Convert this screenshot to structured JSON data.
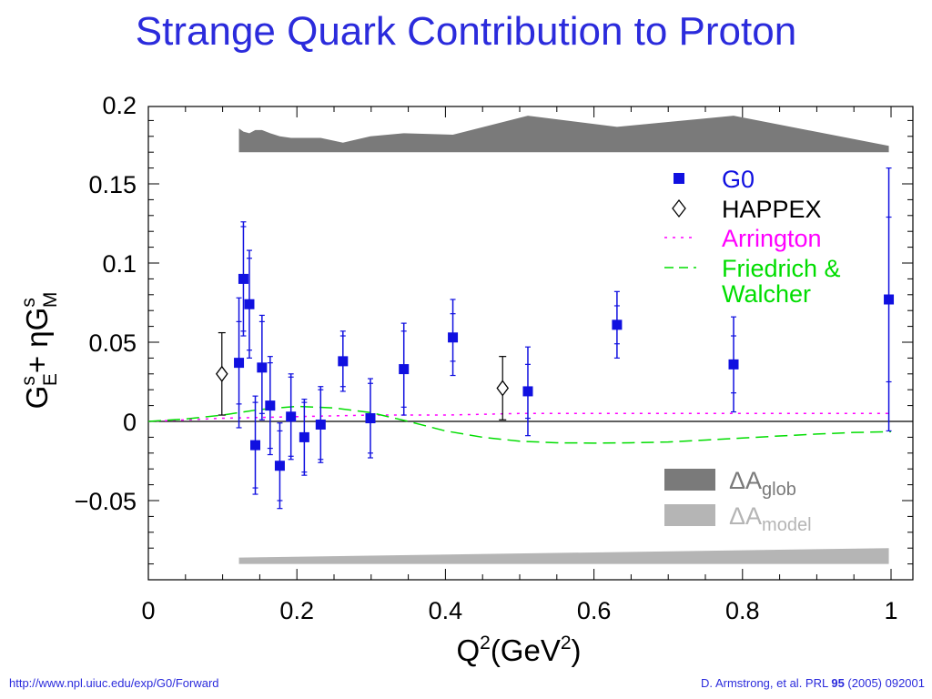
{
  "title": "Strange Quark Contribution to Proton",
  "footer": {
    "url": "http://www.npl.uiuc.edu/exp/G0/Forward",
    "citation_prefix": "D. Armstrong, et al. PRL ",
    "citation_volume": "95",
    "citation_suffix": " (2005) 092001"
  },
  "colors": {
    "title": "#2b2bdc",
    "g0": "#1010e0",
    "happex": "#000000",
    "arrington": "#ff00ff",
    "friedrich_walcher": "#00dd00",
    "band_glob": "#7a7a7a",
    "band_model": "#b5b5b5"
  },
  "chart_data": {
    "type": "scatter",
    "title": "",
    "xlabel": "Q²(GeV²)",
    "ylabel": "G_E^s + ηG_M^s",
    "xlim": [
      0,
      1
    ],
    "ylim": [
      -0.1,
      0.2
    ],
    "xticks": [
      0,
      0.2,
      0.4,
      0.6,
      0.8,
      1
    ],
    "xtick_labels": [
      "0",
      "0.2",
      "0.4",
      "0.6",
      "0.8",
      "1"
    ],
    "yticks": [
      -0.05,
      0,
      0.05,
      0.1,
      0.15,
      0.2
    ],
    "ytick_labels": [
      "−0.05",
      "0",
      "0.05",
      "0.1",
      "0.15",
      "0.2"
    ],
    "legend": [
      {
        "label": "G0",
        "marker": "square",
        "color": "#1010e0"
      },
      {
        "label": "HAPPEX",
        "marker": "diamond",
        "color": "#000000"
      },
      {
        "label": "Arrington",
        "marker": "dotted-line",
        "color": "#ff00ff"
      },
      {
        "label": "Friedrich &",
        "label2": "Walcher",
        "marker": "dashed-line",
        "color": "#00dd00"
      }
    ],
    "band_legend": [
      {
        "base": "ΔA",
        "sub": "glob",
        "color": "#7a7a7a"
      },
      {
        "base": "ΔA",
        "sub": "model",
        "color": "#b5b5b5"
      }
    ],
    "series": [
      {
        "name": "G0",
        "points": [
          {
            "x": 0.122,
            "y": 0.037,
            "stat": 0.026,
            "tot": 0.041
          },
          {
            "x": 0.128,
            "y": 0.09,
            "stat": 0.033,
            "tot": 0.036
          },
          {
            "x": 0.136,
            "y": 0.074,
            "stat": 0.029,
            "tot": 0.034
          },
          {
            "x": 0.144,
            "y": -0.015,
            "stat": 0.027,
            "tot": 0.031
          },
          {
            "x": 0.153,
            "y": 0.034,
            "stat": 0.029,
            "tot": 0.033
          },
          {
            "x": 0.164,
            "y": 0.01,
            "stat": 0.027,
            "tot": 0.031
          },
          {
            "x": 0.177,
            "y": -0.028,
            "stat": 0.022,
            "tot": 0.027
          },
          {
            "x": 0.192,
            "y": 0.003,
            "stat": 0.025,
            "tot": 0.027
          },
          {
            "x": 0.21,
            "y": -0.01,
            "stat": 0.022,
            "tot": 0.024
          },
          {
            "x": 0.232,
            "y": -0.002,
            "stat": 0.022,
            "tot": 0.024
          },
          {
            "x": 0.262,
            "y": 0.038,
            "stat": 0.016,
            "tot": 0.019
          },
          {
            "x": 0.299,
            "y": 0.002,
            "stat": 0.022,
            "tot": 0.025
          },
          {
            "x": 0.344,
            "y": 0.033,
            "stat": 0.024,
            "tot": 0.029
          },
          {
            "x": 0.41,
            "y": 0.053,
            "stat": 0.015,
            "tot": 0.024
          },
          {
            "x": 0.511,
            "y": 0.019,
            "stat": 0.017,
            "tot": 0.028
          },
          {
            "x": 0.631,
            "y": 0.061,
            "stat": 0.012,
            "tot": 0.021
          },
          {
            "x": 0.788,
            "y": 0.036,
            "stat": 0.018,
            "tot": 0.03
          },
          {
            "x": 0.997,
            "y": 0.077,
            "stat": 0.052,
            "tot": 0.083
          }
        ]
      },
      {
        "name": "HAPPEX",
        "points": [
          {
            "x": 0.099,
            "y": 0.03,
            "err": 0.026
          },
          {
            "x": 0.477,
            "y": 0.021,
            "err": 0.02
          }
        ]
      },
      {
        "name": "Arrington",
        "style": "dotted",
        "x": [
          0,
          0.1,
          0.2,
          0.3,
          0.4,
          0.5,
          0.6,
          0.7,
          0.8,
          0.9,
          1.0
        ],
        "y": [
          0.0,
          0.002,
          0.003,
          0.004,
          0.004,
          0.005,
          0.005,
          0.005,
          0.005,
          0.005,
          0.005
        ]
      },
      {
        "name": "Friedrich & Walcher",
        "style": "dashed",
        "x": [
          0,
          0.05,
          0.1,
          0.15,
          0.2,
          0.25,
          0.3,
          0.35,
          0.4,
          0.45,
          0.5,
          0.55,
          0.6,
          0.65,
          0.7,
          0.75,
          0.8,
          0.85,
          0.9,
          0.95,
          1.0
        ],
        "y": [
          0.0,
          0.0015,
          0.004,
          0.0075,
          0.0095,
          0.0085,
          0.0055,
          0.0,
          -0.006,
          -0.01,
          -0.0125,
          -0.0135,
          -0.0137,
          -0.0135,
          -0.013,
          -0.0118,
          -0.0105,
          -0.0092,
          -0.008,
          -0.007,
          -0.0065
        ]
      }
    ],
    "bands": [
      {
        "name": "ΔA glob",
        "baseline": 0.17,
        "x": [
          0.122,
          0.128,
          0.136,
          0.144,
          0.153,
          0.164,
          0.177,
          0.192,
          0.21,
          0.232,
          0.262,
          0.299,
          0.344,
          0.41,
          0.511,
          0.631,
          0.788,
          0.997
        ],
        "top": [
          0.185,
          0.183,
          0.182,
          0.184,
          0.184,
          0.182,
          0.18,
          0.179,
          0.179,
          0.179,
          0.176,
          0.18,
          0.182,
          0.181,
          0.193,
          0.186,
          0.193,
          0.174
        ]
      },
      {
        "name": "ΔA model",
        "baseline": -0.09,
        "x": [
          0.122,
          0.997
        ],
        "top": [
          -0.086,
          -0.08
        ]
      }
    ]
  }
}
